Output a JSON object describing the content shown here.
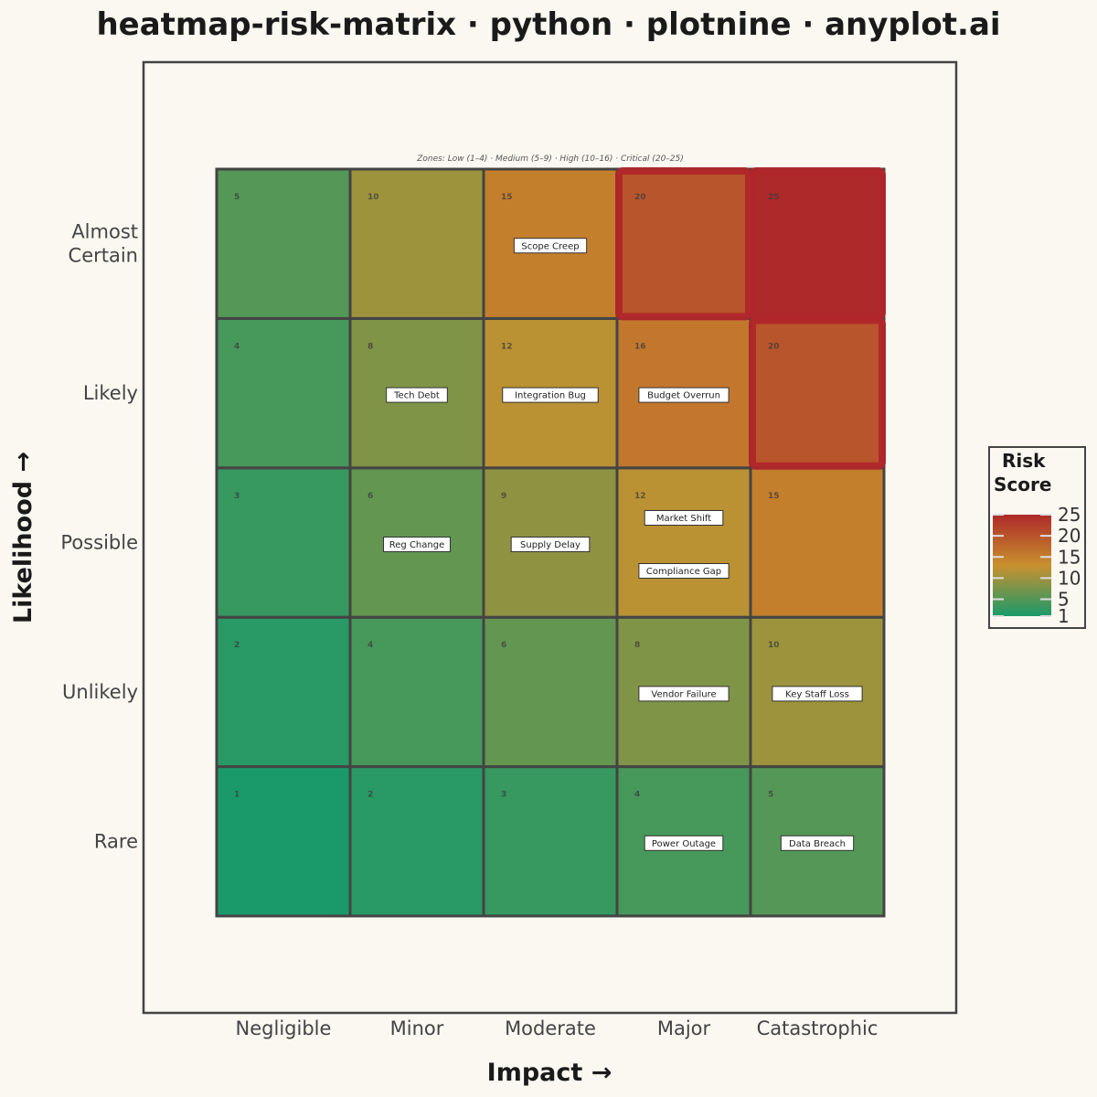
{
  "title": "heatmap-risk-matrix · python · plotnine · anyplot.ai",
  "colors": {
    "background": "#FAF8F1",
    "low": "#1A9A6A",
    "mid": "#C8902E",
    "high": "#AE2A2A",
    "grid": "#444444",
    "critical_outline": "#B0262A"
  },
  "chart_data": {
    "type": "heatmap",
    "title": "heatmap-risk-matrix · python · plotnine · anyplot.ai",
    "xlabel": "Impact →",
    "ylabel": "Likelihood →",
    "x_categories": [
      "Negligible",
      "Minor",
      "Moderate",
      "Major",
      "Catastrophic"
    ],
    "y_categories": [
      "Rare",
      "Unlikely",
      "Possible",
      "Likely",
      "Almost\nCertain"
    ],
    "note": "Zones:  Low (1–4)  ·  Medium (5–9)  ·  High (10–16)  ·  Critical (20–25)",
    "cells": [
      {
        "impact": 1,
        "likelihood": 1,
        "score": 1
      },
      {
        "impact": 2,
        "likelihood": 1,
        "score": 2
      },
      {
        "impact": 3,
        "likelihood": 1,
        "score": 3
      },
      {
        "impact": 4,
        "likelihood": 1,
        "score": 4
      },
      {
        "impact": 5,
        "likelihood": 1,
        "score": 5
      },
      {
        "impact": 1,
        "likelihood": 2,
        "score": 2
      },
      {
        "impact": 2,
        "likelihood": 2,
        "score": 4
      },
      {
        "impact": 3,
        "likelihood": 2,
        "score": 6
      },
      {
        "impact": 4,
        "likelihood": 2,
        "score": 8
      },
      {
        "impact": 5,
        "likelihood": 2,
        "score": 10
      },
      {
        "impact": 1,
        "likelihood": 3,
        "score": 3
      },
      {
        "impact": 2,
        "likelihood": 3,
        "score": 6
      },
      {
        "impact": 3,
        "likelihood": 3,
        "score": 9
      },
      {
        "impact": 4,
        "likelihood": 3,
        "score": 12
      },
      {
        "impact": 5,
        "likelihood": 3,
        "score": 15
      },
      {
        "impact": 1,
        "likelihood": 4,
        "score": 4
      },
      {
        "impact": 2,
        "likelihood": 4,
        "score": 8
      },
      {
        "impact": 3,
        "likelihood": 4,
        "score": 12
      },
      {
        "impact": 4,
        "likelihood": 4,
        "score": 16
      },
      {
        "impact": 5,
        "likelihood": 4,
        "score": 20
      },
      {
        "impact": 1,
        "likelihood": 5,
        "score": 5
      },
      {
        "impact": 2,
        "likelihood": 5,
        "score": 10
      },
      {
        "impact": 3,
        "likelihood": 5,
        "score": 15
      },
      {
        "impact": 4,
        "likelihood": 5,
        "score": 20
      },
      {
        "impact": 5,
        "likelihood": 5,
        "score": 25
      }
    ],
    "risks": [
      {
        "name": "Scope Creep",
        "impact": 3,
        "likelihood": 5
      },
      {
        "name": "Tech Debt",
        "impact": 2,
        "likelihood": 4
      },
      {
        "name": "Integration Bug",
        "impact": 3,
        "likelihood": 4
      },
      {
        "name": "Budget Overrun",
        "impact": 4,
        "likelihood": 4
      },
      {
        "name": "Reg Change",
        "impact": 2,
        "likelihood": 3
      },
      {
        "name": "Supply Delay",
        "impact": 3,
        "likelihood": 3
      },
      {
        "name": "Market Shift",
        "impact": 4,
        "likelihood": 3
      },
      {
        "name": "Compliance Gap",
        "impact": 4,
        "likelihood": 3
      },
      {
        "name": "Vendor Failure",
        "impact": 4,
        "likelihood": 2
      },
      {
        "name": "Key Staff Loss",
        "impact": 5,
        "likelihood": 2
      },
      {
        "name": "Power Outage",
        "impact": 4,
        "likelihood": 1
      },
      {
        "name": "Data Breach",
        "impact": 5,
        "likelihood": 1
      }
    ],
    "legend": {
      "title": "Risk\nScore",
      "position": "right",
      "ticks": [
        1,
        5,
        10,
        15,
        20,
        25
      ],
      "range": [
        1,
        25
      ]
    },
    "critical_zone": {
      "min_score": 20
    }
  }
}
